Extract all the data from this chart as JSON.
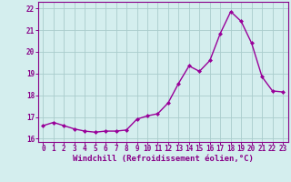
{
  "x": [
    0,
    1,
    2,
    3,
    4,
    5,
    6,
    7,
    8,
    9,
    10,
    11,
    12,
    13,
    14,
    15,
    16,
    17,
    18,
    19,
    20,
    21,
    22,
    23
  ],
  "y": [
    16.6,
    16.75,
    16.6,
    16.45,
    16.35,
    16.3,
    16.35,
    16.35,
    16.4,
    16.9,
    17.05,
    17.15,
    17.65,
    18.55,
    19.35,
    19.1,
    19.6,
    20.85,
    21.85,
    21.4,
    20.4,
    18.85,
    18.2,
    18.15
  ],
  "line_color": "#990099",
  "marker": "D",
  "marker_size": 2.0,
  "linewidth": 1.0,
  "xlabel": "Windchill (Refroidissement éolien,°C)",
  "xlabel_fontsize": 6.5,
  "xlim": [
    -0.5,
    23.5
  ],
  "ylim": [
    15.85,
    22.3
  ],
  "yticks": [
    16,
    17,
    18,
    19,
    20,
    21,
    22
  ],
  "xticks": [
    0,
    1,
    2,
    3,
    4,
    5,
    6,
    7,
    8,
    9,
    10,
    11,
    12,
    13,
    14,
    15,
    16,
    17,
    18,
    19,
    20,
    21,
    22,
    23
  ],
  "tick_fontsize": 5.5,
  "bg_color": "#d4eeee",
  "grid_color": "#aacccc",
  "axes_color": "#880088",
  "spine_color": "#880088"
}
